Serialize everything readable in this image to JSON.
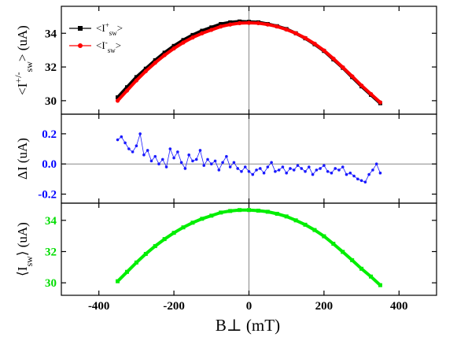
{
  "figure": {
    "xlabel": "B⊥ (mT)",
    "xlim": [
      -500,
      500
    ],
    "xticks": [
      -400,
      -200,
      0,
      200,
      400
    ],
    "xtick_labels": [
      "-400",
      "-200",
      "0",
      "200",
      "400"
    ]
  },
  "chart_data": [
    {
      "type": "scatter",
      "panel": "top",
      "ylabel": "<Isw+/-> (uA)",
      "ylabel_parts": {
        "open": "<",
        "base": "I",
        "sup": "+/-",
        "sub": "sw",
        "close": "> (uA)"
      },
      "ylim": [
        29.2,
        35.6
      ],
      "yticks": [
        30,
        32,
        34
      ],
      "ytick_labels": [
        "30",
        "32",
        "34"
      ],
      "tick_color": "#000000",
      "grid": false,
      "zero_line": true,
      "legend": "top-left",
      "x": [
        -350,
        -325,
        -300,
        -275,
        -250,
        -225,
        -200,
        -175,
        -150,
        -125,
        -100,
        -75,
        -50,
        -25,
        0,
        25,
        50,
        75,
        100,
        125,
        150,
        175,
        200,
        225,
        250,
        275,
        300,
        325,
        350
      ],
      "series": [
        {
          "name": "<Isw+>",
          "legend_parts": {
            "open": "<",
            "base": "I",
            "sup": "+",
            "sub": "sw",
            "close": ">"
          },
          "color": "#000000",
          "marker": "square",
          "values": [
            30.2,
            30.8,
            31.4,
            31.9,
            32.4,
            32.85,
            33.25,
            33.6,
            33.9,
            34.15,
            34.35,
            34.55,
            34.65,
            34.7,
            34.68,
            34.65,
            34.55,
            34.42,
            34.25,
            34.0,
            33.7,
            33.35,
            32.95,
            32.45,
            31.95,
            31.4,
            30.85,
            30.35,
            29.85
          ]
        },
        {
          "name": "<Isw->",
          "legend_parts": {
            "open": "<",
            "base": "I",
            "sup": "-",
            "sub": "sw",
            "close": ">"
          },
          "color": "#ff0000",
          "marker": "circle",
          "values": [
            30.0,
            30.6,
            31.2,
            31.75,
            32.25,
            32.7,
            33.1,
            33.45,
            33.75,
            34.0,
            34.2,
            34.4,
            34.52,
            34.6,
            34.62,
            34.6,
            34.52,
            34.4,
            34.22,
            34.0,
            33.72,
            33.38,
            32.98,
            32.5,
            31.98,
            31.45,
            30.9,
            30.4,
            29.9
          ]
        }
      ]
    },
    {
      "type": "line",
      "panel": "middle",
      "ylabel": "ΔI (uA)",
      "ylim": [
        -0.26,
        0.33
      ],
      "yticks": [
        -0.2,
        0.0,
        0.2
      ],
      "ytick_labels": [
        "-0.2",
        "0.0",
        "0.2"
      ],
      "tick_color": "#0000ff",
      "grid": false,
      "zero_line": true,
      "series": [
        {
          "name": "",
          "color": "#1a1aff",
          "marker": "circle",
          "x": [
            -350,
            -340,
            -330,
            -320,
            -310,
            -300,
            -290,
            -280,
            -270,
            -260,
            -250,
            -240,
            -230,
            -220,
            -210,
            -200,
            -190,
            -180,
            -170,
            -160,
            -150,
            -140,
            -130,
            -120,
            -110,
            -100,
            -90,
            -80,
            -70,
            -60,
            -50,
            -40,
            -30,
            -20,
            -10,
            0,
            10,
            20,
            30,
            40,
            50,
            60,
            70,
            80,
            90,
            100,
            110,
            120,
            130,
            140,
            150,
            160,
            170,
            180,
            190,
            200,
            210,
            220,
            230,
            240,
            250,
            260,
            270,
            280,
            290,
            300,
            310,
            320,
            330,
            340,
            350
          ],
          "values": [
            0.16,
            0.18,
            0.14,
            0.1,
            0.08,
            0.12,
            0.2,
            0.06,
            0.09,
            0.02,
            0.05,
            0.0,
            0.03,
            -0.02,
            0.1,
            0.04,
            0.08,
            0.01,
            -0.03,
            0.06,
            0.02,
            0.03,
            0.09,
            -0.01,
            0.03,
            0.0,
            0.02,
            -0.04,
            0.01,
            0.05,
            -0.02,
            0.01,
            -0.03,
            -0.05,
            -0.02,
            -0.05,
            -0.07,
            -0.04,
            -0.03,
            -0.06,
            -0.02,
            0.01,
            -0.05,
            -0.04,
            -0.02,
            -0.06,
            -0.03,
            -0.04,
            -0.01,
            -0.03,
            -0.05,
            -0.02,
            -0.07,
            -0.04,
            -0.03,
            -0.01,
            -0.05,
            -0.06,
            -0.03,
            -0.04,
            -0.02,
            -0.07,
            -0.06,
            -0.08,
            -0.1,
            -0.11,
            -0.12,
            -0.07,
            -0.04,
            0.0,
            -0.06
          ]
        }
      ]
    },
    {
      "type": "scatter",
      "panel": "bottom",
      "ylabel": "<Isw> (uA)",
      "ylabel_parts": {
        "open": "⟨",
        "base": "I",
        "sup": "",
        "sub": "sw",
        "close": "⟩ (uA)"
      },
      "ylim": [
        29.2,
        35.1
      ],
      "yticks": [
        30,
        32,
        34
      ],
      "ytick_labels": [
        "30",
        "32",
        "34"
      ],
      "tick_color": "#00dd00",
      "grid": false,
      "zero_line": true,
      "series": [
        {
          "name": "",
          "color": "#00ee00",
          "marker": "square",
          "x": [
            -350,
            -325,
            -300,
            -275,
            -250,
            -225,
            -200,
            -175,
            -150,
            -125,
            -100,
            -75,
            -50,
            -25,
            0,
            25,
            50,
            75,
            100,
            125,
            150,
            175,
            200,
            225,
            250,
            275,
            300,
            325,
            350
          ],
          "values": [
            30.1,
            30.7,
            31.3,
            31.85,
            32.35,
            32.8,
            33.2,
            33.55,
            33.85,
            34.1,
            34.3,
            34.5,
            34.6,
            34.66,
            34.66,
            34.62,
            34.55,
            34.42,
            34.25,
            34.0,
            33.72,
            33.38,
            32.98,
            32.5,
            31.98,
            31.45,
            30.9,
            30.4,
            29.85
          ]
        }
      ]
    }
  ]
}
